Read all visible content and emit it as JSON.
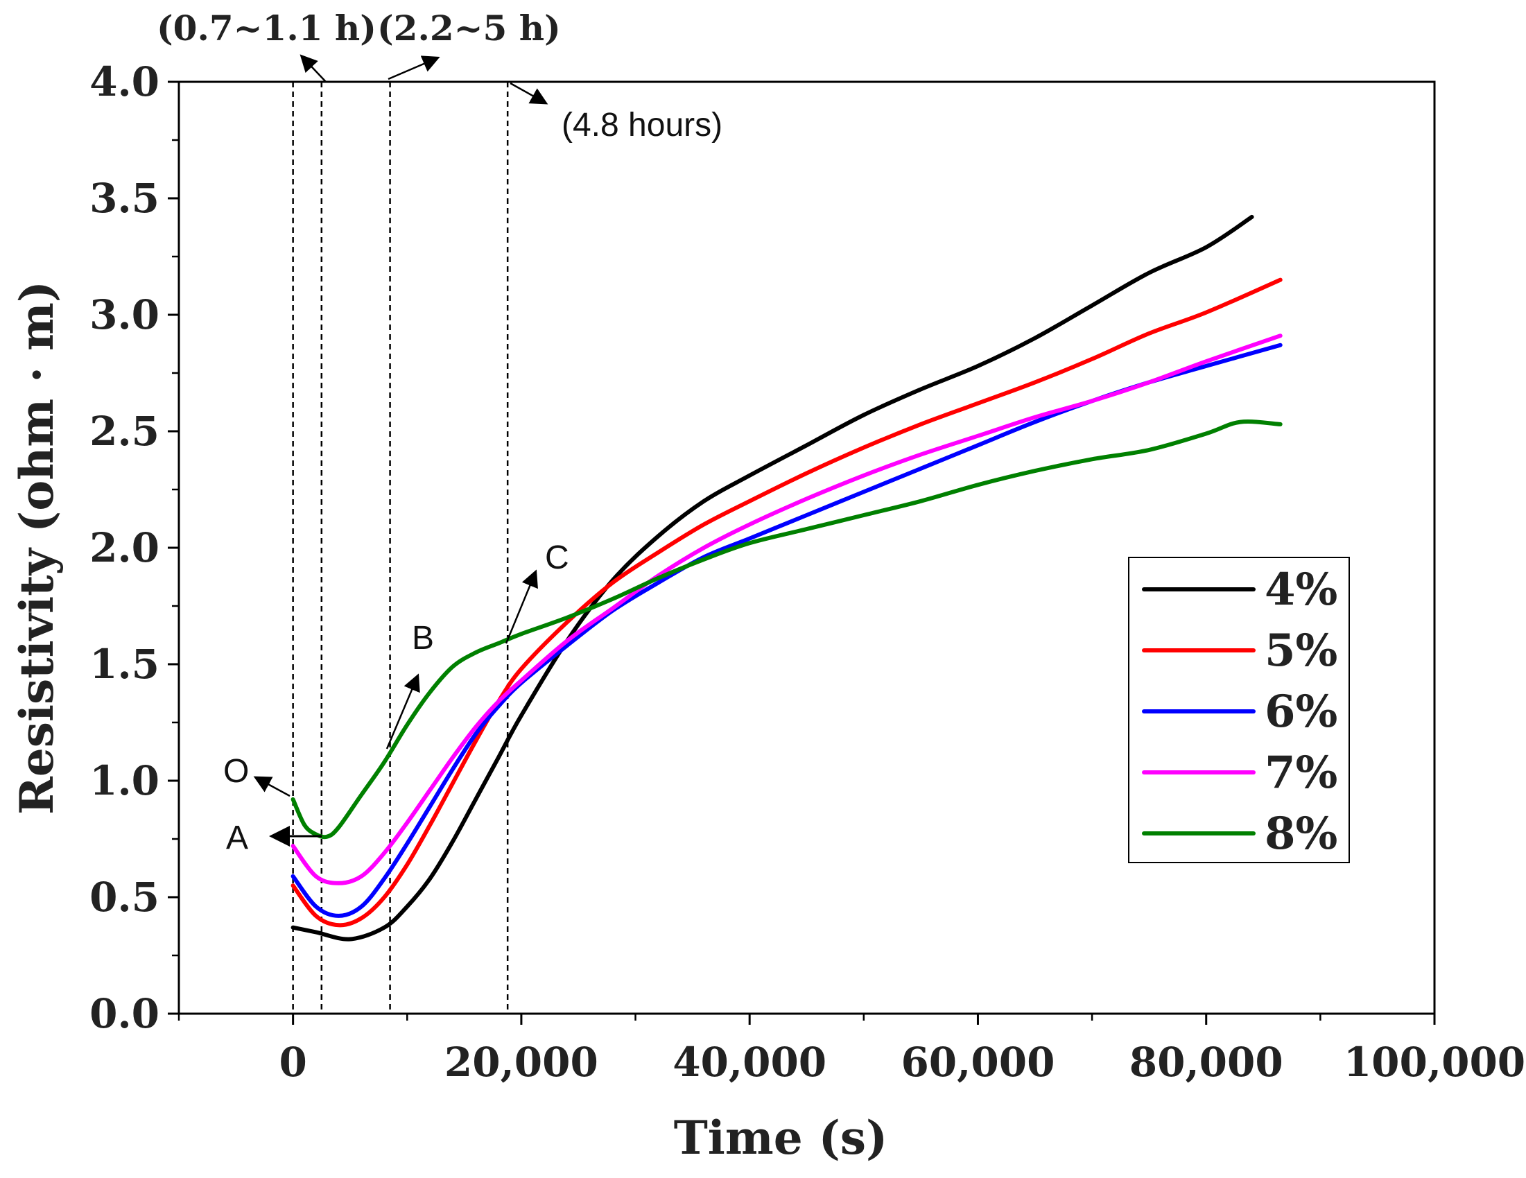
{
  "chart_data": {
    "type": "line",
    "title": "",
    "xlabel": "Time (s)",
    "ylabel": "Resistivity (ohm · m)",
    "xlim": [
      -10000,
      100000
    ],
    "ylim": [
      0.0,
      4.0
    ],
    "x_ticks": [
      0,
      20000,
      40000,
      60000,
      80000,
      100000
    ],
    "x_tick_labels": [
      "0",
      "20,000",
      "40,000",
      "60,000",
      "80,000",
      "100,000"
    ],
    "y_ticks": [
      0.0,
      0.5,
      1.0,
      1.5,
      2.0,
      2.5,
      3.0,
      3.5,
      4.0
    ],
    "y_tick_labels": [
      "0.0",
      "0.5",
      "1.0",
      "1.5",
      "2.0",
      "2.5",
      "3.0",
      "3.5",
      "4.0"
    ],
    "grid": false,
    "legend_position": "right",
    "series": [
      {
        "name": "4%",
        "color": "#000000",
        "x": [
          0,
          2000,
          5000,
          8000,
          10000,
          12000,
          14000,
          16000,
          18000,
          20000,
          24000,
          28000,
          32000,
          36000,
          40000,
          45000,
          50000,
          55000,
          60000,
          65000,
          70000,
          75000,
          80000,
          84000
        ],
        "y": [
          0.37,
          0.35,
          0.32,
          0.37,
          0.46,
          0.58,
          0.74,
          0.92,
          1.1,
          1.28,
          1.6,
          1.86,
          2.05,
          2.2,
          2.31,
          2.44,
          2.57,
          2.68,
          2.78,
          2.9,
          3.04,
          3.18,
          3.29,
          3.42
        ]
      },
      {
        "name": "5%",
        "color": "#ff0000",
        "x": [
          0,
          2000,
          4000,
          6000,
          8000,
          10000,
          12000,
          14000,
          16000,
          18000,
          20000,
          24000,
          28000,
          32000,
          36000,
          40000,
          45000,
          50000,
          55000,
          60000,
          65000,
          70000,
          75000,
          80000,
          86500
        ],
        "y": [
          0.55,
          0.42,
          0.38,
          0.41,
          0.5,
          0.64,
          0.81,
          0.99,
          1.17,
          1.34,
          1.48,
          1.68,
          1.85,
          1.98,
          2.1,
          2.2,
          2.32,
          2.43,
          2.53,
          2.62,
          2.71,
          2.81,
          2.92,
          3.01,
          3.15
        ]
      },
      {
        "name": "6%",
        "color": "#0000ff",
        "x": [
          0,
          2000,
          4000,
          6000,
          8000,
          10000,
          12000,
          14000,
          16000,
          18000,
          20000,
          24000,
          28000,
          32000,
          36000,
          40000,
          45000,
          50000,
          55000,
          60000,
          65000,
          70000,
          75000,
          80000,
          86500
        ],
        "y": [
          0.59,
          0.46,
          0.42,
          0.46,
          0.58,
          0.73,
          0.89,
          1.05,
          1.2,
          1.32,
          1.42,
          1.58,
          1.73,
          1.85,
          1.96,
          2.04,
          2.14,
          2.24,
          2.34,
          2.44,
          2.54,
          2.63,
          2.71,
          2.78,
          2.87
        ]
      },
      {
        "name": "7%",
        "color": "#ff00ff",
        "x": [
          0,
          2000,
          4000,
          6000,
          8000,
          10000,
          12000,
          14000,
          16000,
          18000,
          20000,
          24000,
          28000,
          32000,
          36000,
          40000,
          45000,
          50000,
          55000,
          60000,
          65000,
          70000,
          75000,
          80000,
          86500
        ],
        "y": [
          0.72,
          0.59,
          0.56,
          0.59,
          0.69,
          0.82,
          0.96,
          1.1,
          1.23,
          1.34,
          1.43,
          1.6,
          1.74,
          1.88,
          2.0,
          2.1,
          2.21,
          2.31,
          2.4,
          2.48,
          2.56,
          2.63,
          2.71,
          2.8,
          2.91
        ]
      },
      {
        "name": "8%",
        "color": "#008000",
        "x": [
          0,
          1000,
          2000,
          3000,
          4000,
          6000,
          8000,
          10000,
          12000,
          14000,
          16000,
          18000,
          20000,
          24000,
          28000,
          32000,
          36000,
          40000,
          45000,
          50000,
          55000,
          60000,
          65000,
          70000,
          75000,
          80000,
          83000,
          86500
        ],
        "y": [
          0.92,
          0.81,
          0.77,
          0.76,
          0.8,
          0.94,
          1.08,
          1.24,
          1.38,
          1.49,
          1.55,
          1.59,
          1.63,
          1.7,
          1.78,
          1.87,
          1.95,
          2.02,
          2.08,
          2.14,
          2.2,
          2.27,
          2.33,
          2.38,
          2.42,
          2.49,
          2.54,
          2.53
        ]
      }
    ],
    "reference_lines_x": [
      0,
      2500,
      8500,
      18800
    ],
    "annotations": {
      "range_1": "(0.7~1.1 h)",
      "range_2": "(2.2~5 h)",
      "hours": "(4.8 hours)",
      "point_o": "O",
      "point_a": "A",
      "point_b": "B",
      "point_c": "C"
    }
  }
}
